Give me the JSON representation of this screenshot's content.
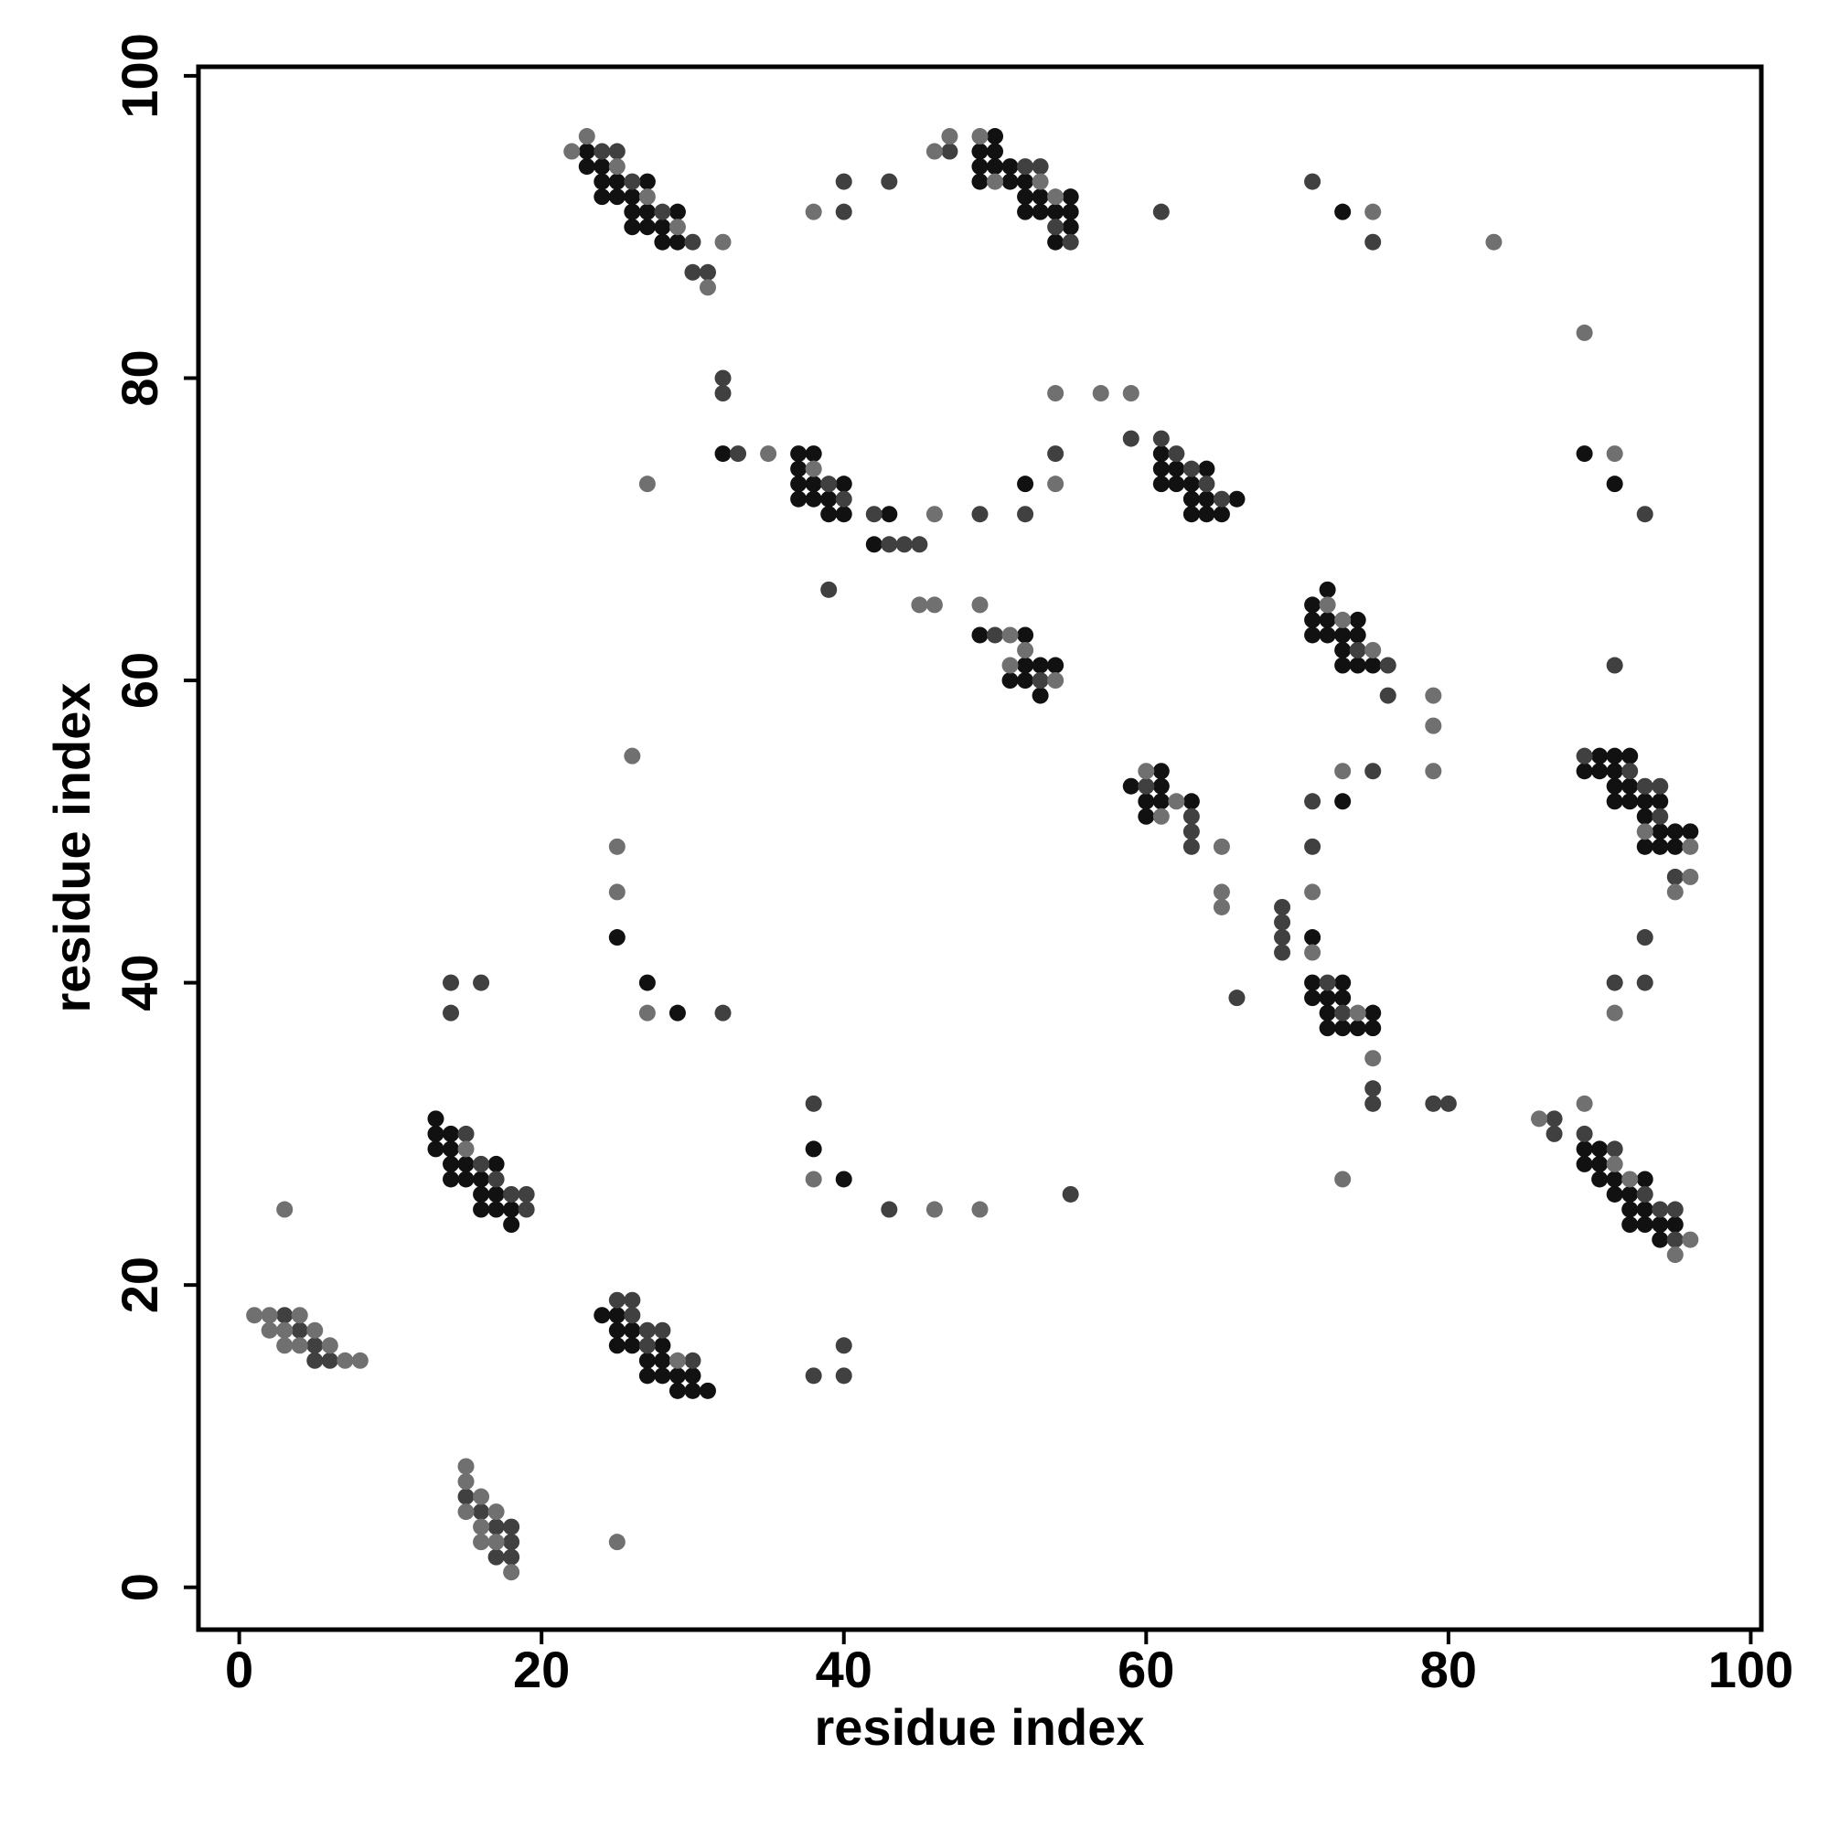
{
  "chart_data": {
    "type": "scatter",
    "xlabel": "residue index",
    "ylabel": "residue index",
    "xlim": [
      -2.7,
      100.7
    ],
    "ylim": [
      -2.8,
      100.6
    ],
    "xticks": [
      0,
      20,
      40,
      60,
      80,
      100
    ],
    "yticks": [
      0,
      20,
      40,
      60,
      80,
      100
    ],
    "series": [
      {
        "color": "#111111",
        "x": [
          23,
          23,
          24,
          24,
          24,
          25,
          25,
          26,
          26,
          26,
          27,
          27,
          27,
          28,
          28,
          29,
          29,
          49,
          49,
          49,
          50,
          50,
          50,
          51,
          51,
          52,
          52,
          52,
          53,
          53,
          54,
          54,
          55,
          55,
          55,
          73,
          32,
          37,
          37,
          37,
          37,
          38,
          38,
          38,
          39,
          39,
          40,
          40,
          43,
          42,
          52,
          61,
          61,
          61,
          62,
          62,
          63,
          63,
          63,
          64,
          64,
          64,
          65,
          66,
          49,
          52,
          52,
          53,
          54,
          51,
          52,
          53,
          71,
          71,
          71,
          72,
          72,
          72,
          73,
          73,
          73,
          74,
          74,
          74,
          75,
          89,
          91,
          25,
          59,
          60,
          60,
          61,
          61,
          61,
          63,
          71,
          73,
          71,
          71,
          72,
          72,
          72,
          73,
          73,
          73,
          74,
          75,
          75,
          89,
          90,
          90,
          91,
          91,
          91,
          91,
          92,
          92,
          92,
          93,
          93,
          93,
          94,
          94,
          94,
          95,
          95,
          96,
          27,
          29,
          13,
          13,
          13,
          14,
          14,
          14,
          14,
          15,
          15,
          16,
          16,
          16,
          17,
          17,
          17,
          18,
          18,
          24,
          25,
          25,
          25,
          26,
          26,
          27,
          27,
          28,
          28,
          28,
          29,
          29,
          30,
          30,
          31,
          38,
          40,
          89,
          89,
          90,
          90,
          90,
          91,
          91,
          92,
          92,
          92,
          93,
          93,
          93,
          94,
          94,
          95
        ],
        "y": [
          95,
          94,
          94,
          93,
          92,
          93,
          92,
          92,
          91,
          90,
          93,
          91,
          90,
          90,
          89,
          91,
          89,
          95,
          94,
          93,
          96,
          95,
          94,
          94,
          93,
          93,
          92,
          91,
          92,
          91,
          91,
          89,
          92,
          91,
          90,
          91,
          75,
          75,
          74,
          73,
          72,
          75,
          73,
          72,
          72,
          71,
          73,
          71,
          71,
          69,
          73,
          75,
          74,
          73,
          74,
          73,
          73,
          72,
          71,
          74,
          72,
          71,
          71,
          72,
          63,
          63,
          61,
          61,
          61,
          60,
          60,
          59,
          65,
          64,
          63,
          66,
          64,
          63,
          63,
          62,
          61,
          64,
          63,
          61,
          61,
          75,
          73,
          43,
          53,
          52,
          51,
          54,
          53,
          52,
          52,
          43,
          52,
          40,
          39,
          39,
          38,
          37,
          40,
          39,
          37,
          37,
          38,
          37,
          54,
          55,
          54,
          55,
          54,
          53,
          52,
          55,
          53,
          52,
          52,
          51,
          49,
          52,
          50,
          49,
          50,
          49,
          50,
          40,
          38,
          31,
          30,
          29,
          30,
          29,
          28,
          27,
          28,
          27,
          27,
          26,
          25,
          28,
          26,
          25,
          25,
          24,
          18,
          18,
          17,
          16,
          17,
          16,
          15,
          14,
          16,
          15,
          14,
          14,
          13,
          14,
          13,
          13,
          29,
          27,
          29,
          28,
          29,
          28,
          27,
          27,
          26,
          26,
          25,
          24,
          27,
          25,
          24,
          24,
          23,
          24
        ]
      },
      {
        "color": "#404040",
        "x": [
          24,
          25,
          26,
          28,
          30,
          30,
          31,
          40,
          40,
          43,
          47,
          52,
          53,
          54,
          55,
          61,
          71,
          75,
          32,
          32,
          33,
          39,
          40,
          42,
          43,
          44,
          45,
          49,
          52,
          54,
          59,
          61,
          62,
          63,
          64,
          65,
          39,
          50,
          53,
          74,
          76,
          76,
          91,
          93,
          60,
          63,
          63,
          63,
          66,
          69,
          69,
          69,
          69,
          71,
          71,
          75,
          72,
          73,
          75,
          75,
          79,
          80,
          89,
          92,
          93,
          94,
          94,
          95,
          91,
          93,
          93,
          14,
          14,
          16,
          32,
          15,
          16,
          17,
          18,
          19,
          19,
          3,
          4,
          5,
          5,
          6,
          25,
          26,
          26,
          27,
          27,
          28,
          30,
          38,
          40,
          40,
          38,
          43,
          55,
          87,
          87,
          89,
          91,
          93,
          94,
          95,
          95,
          15,
          16,
          17,
          17,
          18,
          18,
          18
        ],
        "y": [
          95,
          95,
          93,
          91,
          89,
          87,
          87,
          93,
          91,
          93,
          95,
          94,
          94,
          90,
          89,
          91,
          93,
          89,
          80,
          79,
          75,
          73,
          72,
          71,
          69,
          69,
          69,
          71,
          71,
          75,
          76,
          76,
          75,
          74,
          73,
          72,
          66,
          63,
          60,
          62,
          61,
          59,
          61,
          71,
          53,
          51,
          50,
          49,
          39,
          45,
          44,
          43,
          42,
          52,
          49,
          54,
          40,
          38,
          33,
          32,
          32,
          32,
          55,
          54,
          53,
          53,
          51,
          47,
          40,
          43,
          40,
          40,
          38,
          40,
          38,
          30,
          28,
          27,
          26,
          26,
          25,
          18,
          17,
          16,
          15,
          15,
          19,
          19,
          18,
          17,
          16,
          17,
          15,
          14,
          16,
          14,
          32,
          25,
          26,
          31,
          30,
          30,
          29,
          26,
          25,
          25,
          23,
          6,
          5,
          4,
          2,
          4,
          3,
          2
        ]
      },
      {
        "color": "#707070",
        "x": [
          22,
          23,
          25,
          27,
          29,
          31,
          32,
          38,
          46,
          47,
          49,
          50,
          53,
          54,
          75,
          83,
          89,
          35,
          38,
          46,
          54,
          54,
          57,
          59,
          27,
          45,
          46,
          49,
          51,
          52,
          51,
          54,
          72,
          73,
          75,
          79,
          79,
          79,
          91,
          26,
          25,
          25,
          60,
          61,
          62,
          65,
          65,
          65,
          71,
          71,
          73,
          74,
          75,
          93,
          95,
          96,
          96,
          91,
          27,
          15,
          3,
          1,
          2,
          2,
          3,
          3,
          4,
          4,
          5,
          6,
          7,
          8,
          29,
          38,
          46,
          49,
          73,
          86,
          89,
          91,
          92,
          95,
          96,
          15,
          15,
          15,
          16,
          16,
          16,
          17,
          17,
          18,
          25
        ],
        "y": [
          95,
          96,
          94,
          92,
          90,
          86,
          89,
          91,
          95,
          96,
          96,
          93,
          93,
          92,
          91,
          89,
          83,
          75,
          74,
          71,
          79,
          73,
          79,
          79,
          73,
          65,
          65,
          65,
          63,
          62,
          61,
          60,
          65,
          64,
          62,
          59,
          57,
          54,
          75,
          55,
          49,
          46,
          54,
          51,
          52,
          49,
          46,
          45,
          46,
          42,
          54,
          38,
          35,
          50,
          46,
          49,
          47,
          38,
          38,
          29,
          25,
          18,
          18,
          17,
          17,
          16,
          18,
          16,
          17,
          16,
          15,
          15,
          15,
          27,
          25,
          25,
          27,
          31,
          32,
          28,
          27,
          22,
          23,
          8,
          7,
          5,
          6,
          4,
          3,
          5,
          3,
          1,
          3
        ]
      }
    ]
  }
}
